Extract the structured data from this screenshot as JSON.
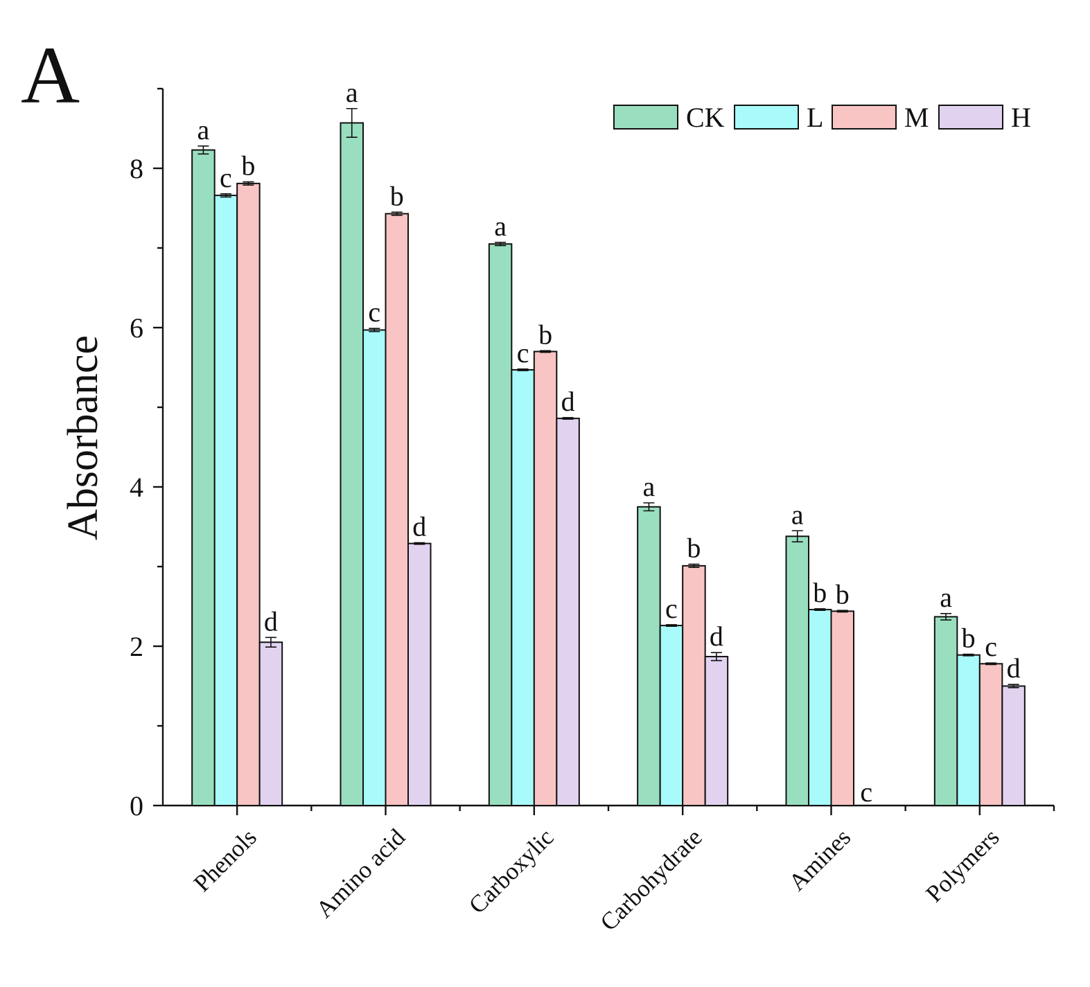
{
  "panel_label": "A",
  "colors": {
    "CK": "#99dfbf",
    "L": "#a9fafa",
    "M": "#f8c4c4",
    "H": "#e1d3f0"
  },
  "chart_data": {
    "type": "bar",
    "title": "",
    "xlabel": "",
    "ylabel": "Absorbance",
    "ylim": [
      0,
      9
    ],
    "yticks": [
      0,
      2,
      4,
      6,
      8
    ],
    "y_minor_step": 1,
    "categories": [
      "Phenols",
      "Amino acid",
      "Carboxylic",
      "Carbohydrate",
      "Amines",
      "Polymers"
    ],
    "legend_position": "top-right",
    "series": [
      {
        "name": "CK",
        "values": [
          8.23,
          8.57,
          7.05,
          3.75,
          3.38,
          2.37
        ],
        "errors": [
          0.05,
          0.18,
          0.02,
          0.05,
          0.07,
          0.04
        ],
        "letters": [
          "a",
          "a",
          "a",
          "a",
          "a",
          "a"
        ]
      },
      {
        "name": "L",
        "values": [
          7.66,
          5.97,
          5.47,
          2.26,
          2.46,
          1.89
        ],
        "errors": [
          0.02,
          0.02,
          0.01,
          0.01,
          0.01,
          0.01
        ],
        "letters": [
          "c",
          "c",
          "c",
          "c",
          "b",
          "b"
        ]
      },
      {
        "name": "M",
        "values": [
          7.81,
          7.43,
          5.7,
          3.01,
          2.44,
          1.78
        ],
        "errors": [
          0.02,
          0.02,
          0.01,
          0.02,
          0.01,
          0.01
        ],
        "letters": [
          "b",
          "b",
          "b",
          "b",
          "b",
          "c"
        ]
      },
      {
        "name": "H",
        "values": [
          2.05,
          3.29,
          4.86,
          1.87,
          0,
          1.5
        ],
        "errors": [
          0.06,
          0.01,
          0.01,
          0.05,
          0,
          0.02
        ],
        "letters": [
          "d",
          "d",
          "d",
          "d",
          "c",
          "d"
        ]
      }
    ]
  }
}
